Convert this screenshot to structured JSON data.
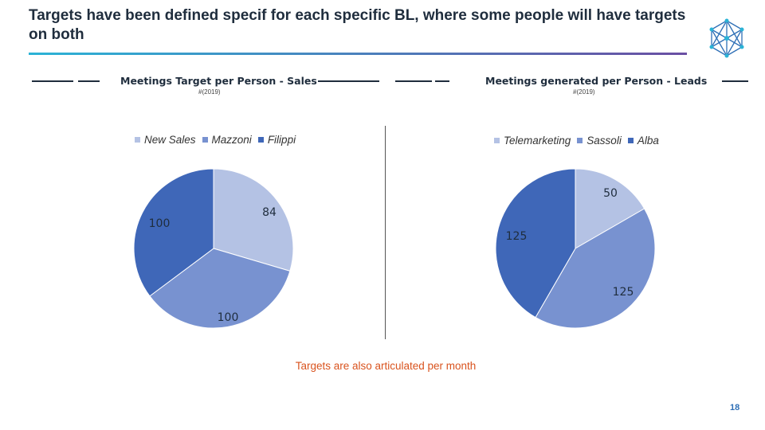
{
  "slide": {
    "title": "Targets have been defined specif for each specific BL, where some people will have targets on both",
    "footnote": "Targets are also articulated per month",
    "page_number": "18"
  },
  "colors": {
    "light": "#b4c2e4",
    "mid": "#7892d0",
    "dark": "#3f67b8",
    "accent": "#d9531e"
  },
  "chart_data": [
    {
      "type": "pie",
      "title": "Meetings Target per Person - Sales",
      "subtitle": "#(2019)",
      "legend_position": "top",
      "categories": [
        "New Sales",
        "Mazzoni",
        "Filippi"
      ],
      "values": [
        84,
        100,
        100
      ],
      "data_labels": [
        "84",
        "100",
        "100"
      ]
    },
    {
      "type": "pie",
      "title": "Meetings generated per Person - Leads",
      "subtitle": "#(2019)",
      "legend_position": "top",
      "categories": [
        "Telemarketing",
        "Sassoli",
        "Alba"
      ],
      "values": [
        50,
        125,
        125
      ],
      "data_labels": [
        "50",
        "125",
        "125"
      ]
    }
  ]
}
